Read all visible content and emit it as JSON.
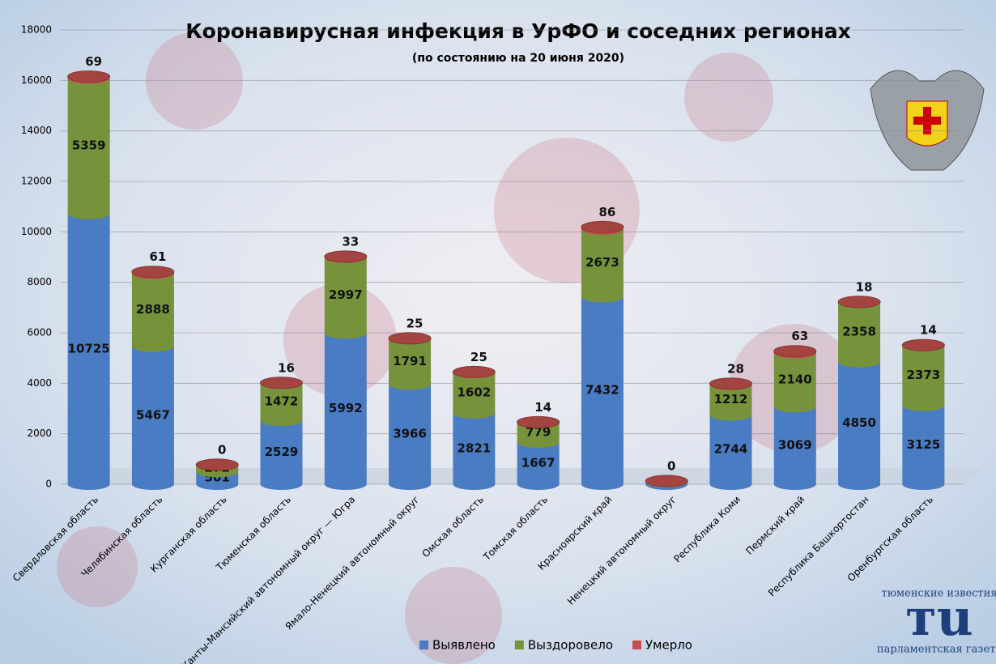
{
  "chart_data": {
    "type": "stacked-cylinder",
    "title": "Коронавирусная инфекция в УрФО и соседних регионах",
    "subtitle": "(по состоянию на 20 июня 2020)",
    "categories": [
      "Свердловская область",
      "Челябинская область",
      "Курганская область",
      "Тюменская область",
      "Ханты-Мансийский  автономный округ — Югра",
      "Ямало-Ненецкий автономный округ",
      "Омская область",
      "Томская область",
      "Красноярский край",
      "Ненецкий автономный округ",
      "Республика Коми",
      "Пермский край",
      "Республика Башкортостан",
      "Оренбургская область"
    ],
    "series": [
      {
        "name": "Выявлено",
        "color": "#4a7cc4",
        "values": [
          10725,
          5467,
          501,
          2529,
          5992,
          3966,
          2821,
          1667,
          7432,
          95,
          2744,
          3069,
          4850,
          3125
        ]
      },
      {
        "name": "Выздоровело",
        "color": "#76933c",
        "values": [
          5359,
          2888,
          272,
          1472,
          2997,
          1791,
          1602,
          779,
          2673,
          33,
          1212,
          2140,
          2358,
          2373
        ]
      },
      {
        "name": "Умерло",
        "color": "#c0504d",
        "values": [
          69,
          61,
          0,
          16,
          33,
          25,
          25,
          14,
          86,
          0,
          28,
          63,
          18,
          14
        ]
      }
    ],
    "ylim": [
      0,
      18000
    ],
    "yticks": [
      0,
      2000,
      4000,
      6000,
      8000,
      10000,
      12000,
      14000,
      16000,
      18000
    ],
    "grid": true,
    "legend": "bottom"
  },
  "branding": {
    "top": "тюменские известия",
    "logo": "тu",
    "bottom": "парламентская газета"
  }
}
